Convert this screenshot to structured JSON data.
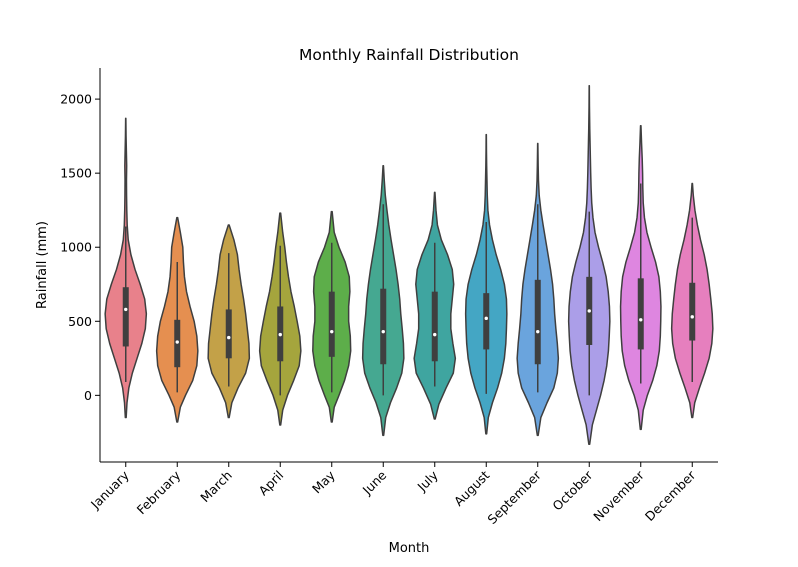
{
  "chart_data": {
    "type": "violin",
    "title": "Monthly Rainfall Distribution",
    "xlabel": "Month",
    "ylabel": "Rainfall (mm)",
    "ylim": [
      -450,
      2210
    ],
    "yticks": [
      0,
      500,
      1000,
      1500,
      2000
    ],
    "grid": false,
    "legend": "none",
    "categories": [
      "January",
      "February",
      "March",
      "April",
      "May",
      "June",
      "July",
      "August",
      "September",
      "October",
      "November",
      "December"
    ],
    "series": [
      {
        "month": "January",
        "color": "#e8818b",
        "min": 90,
        "max": 1140,
        "q1": 330,
        "median": 580,
        "q3": 730,
        "kde_min": -150,
        "kde_max": 1870,
        "density": [
          [
            -150,
            0.02
          ],
          [
            -50,
            0.06
          ],
          [
            50,
            0.15
          ],
          [
            150,
            0.32
          ],
          [
            250,
            0.55
          ],
          [
            350,
            0.78
          ],
          [
            450,
            0.95
          ],
          [
            550,
            1.0
          ],
          [
            650,
            0.92
          ],
          [
            750,
            0.7
          ],
          [
            850,
            0.45
          ],
          [
            950,
            0.25
          ],
          [
            1050,
            0.12
          ],
          [
            1150,
            0.07
          ],
          [
            1250,
            0.05
          ],
          [
            1350,
            0.04
          ],
          [
            1450,
            0.035
          ],
          [
            1550,
            0.045
          ],
          [
            1650,
            0.03
          ],
          [
            1750,
            0.015
          ],
          [
            1870,
            0.005
          ]
        ]
      },
      {
        "month": "February",
        "color": "#e58f50",
        "min": 20,
        "max": 900,
        "q1": 190,
        "median": 360,
        "q3": 510,
        "kde_min": -180,
        "kde_max": 1200,
        "density": [
          [
            -180,
            0.02
          ],
          [
            -80,
            0.15
          ],
          [
            0,
            0.4
          ],
          [
            100,
            0.75
          ],
          [
            200,
            0.95
          ],
          [
            300,
            1.0
          ],
          [
            400,
            0.95
          ],
          [
            500,
            0.82
          ],
          [
            600,
            0.62
          ],
          [
            700,
            0.45
          ],
          [
            800,
            0.35
          ],
          [
            900,
            0.3
          ],
          [
            1000,
            0.27
          ],
          [
            1100,
            0.15
          ],
          [
            1200,
            0.02
          ]
        ]
      },
      {
        "month": "March",
        "color": "#c3a148",
        "min": 60,
        "max": 960,
        "q1": 250,
        "median": 390,
        "q3": 580,
        "kde_min": -150,
        "kde_max": 1150,
        "density": [
          [
            -150,
            0.02
          ],
          [
            -50,
            0.15
          ],
          [
            50,
            0.45
          ],
          [
            150,
            0.82
          ],
          [
            250,
            1.0
          ],
          [
            350,
            0.98
          ],
          [
            450,
            0.9
          ],
          [
            550,
            0.82
          ],
          [
            650,
            0.72
          ],
          [
            750,
            0.6
          ],
          [
            850,
            0.5
          ],
          [
            950,
            0.42
          ],
          [
            1050,
            0.25
          ],
          [
            1150,
            0.02
          ]
        ]
      },
      {
        "month": "April",
        "color": "#a5a53d",
        "min": 0,
        "max": 1010,
        "q1": 230,
        "median": 410,
        "q3": 600,
        "kde_min": -200,
        "kde_max": 1230,
        "density": [
          [
            -200,
            0.02
          ],
          [
            -100,
            0.12
          ],
          [
            0,
            0.35
          ],
          [
            100,
            0.65
          ],
          [
            200,
            0.92
          ],
          [
            300,
            1.0
          ],
          [
            400,
            0.95
          ],
          [
            500,
            0.82
          ],
          [
            600,
            0.68
          ],
          [
            700,
            0.52
          ],
          [
            800,
            0.4
          ],
          [
            900,
            0.3
          ],
          [
            1000,
            0.22
          ],
          [
            1100,
            0.12
          ],
          [
            1230,
            0.02
          ]
        ]
      },
      {
        "month": "May",
        "color": "#5dae4a",
        "min": 20,
        "max": 1030,
        "q1": 260,
        "median": 430,
        "q3": 700,
        "kde_min": -180,
        "kde_max": 1240,
        "density": [
          [
            -180,
            0.02
          ],
          [
            -80,
            0.12
          ],
          [
            0,
            0.35
          ],
          [
            100,
            0.62
          ],
          [
            200,
            0.82
          ],
          [
            300,
            0.92
          ],
          [
            400,
            0.9
          ],
          [
            500,
            0.82
          ],
          [
            600,
            0.82
          ],
          [
            700,
            0.88
          ],
          [
            800,
            0.85
          ],
          [
            900,
            0.65
          ],
          [
            1000,
            0.35
          ],
          [
            1100,
            0.12
          ],
          [
            1240,
            0.02
          ]
        ]
      },
      {
        "month": "June",
        "color": "#45a891",
        "min": 0,
        "max": 1290,
        "q1": 210,
        "median": 430,
        "q3": 720,
        "kde_min": -270,
        "kde_max": 1550,
        "density": [
          [
            -270,
            0.02
          ],
          [
            -150,
            0.12
          ],
          [
            -50,
            0.35
          ],
          [
            50,
            0.65
          ],
          [
            150,
            0.9
          ],
          [
            250,
            1.0
          ],
          [
            350,
            0.98
          ],
          [
            450,
            0.92
          ],
          [
            550,
            0.85
          ],
          [
            650,
            0.8
          ],
          [
            750,
            0.72
          ],
          [
            850,
            0.62
          ],
          [
            950,
            0.5
          ],
          [
            1050,
            0.38
          ],
          [
            1150,
            0.27
          ],
          [
            1250,
            0.18
          ],
          [
            1350,
            0.1
          ],
          [
            1450,
            0.05
          ],
          [
            1550,
            0.01
          ]
        ]
      },
      {
        "month": "July",
        "color": "#3fa5a0",
        "min": 60,
        "max": 1030,
        "q1": 230,
        "median": 410,
        "q3": 700,
        "kde_min": -160,
        "kde_max": 1370,
        "density": [
          [
            -160,
            0.02
          ],
          [
            -60,
            0.2
          ],
          [
            50,
            0.55
          ],
          [
            150,
            0.9
          ],
          [
            250,
            1.0
          ],
          [
            350,
            0.88
          ],
          [
            450,
            0.78
          ],
          [
            550,
            0.78
          ],
          [
            650,
            0.85
          ],
          [
            750,
            0.92
          ],
          [
            850,
            0.85
          ],
          [
            950,
            0.62
          ],
          [
            1050,
            0.32
          ],
          [
            1150,
            0.13
          ],
          [
            1250,
            0.06
          ],
          [
            1370,
            0.01
          ]
        ]
      },
      {
        "month": "August",
        "color": "#44a6c4",
        "min": 10,
        "max": 1170,
        "q1": 310,
        "median": 520,
        "q3": 690,
        "kde_min": -260,
        "kde_max": 1760,
        "density": [
          [
            -260,
            0.02
          ],
          [
            -150,
            0.1
          ],
          [
            -50,
            0.3
          ],
          [
            50,
            0.55
          ],
          [
            150,
            0.75
          ],
          [
            250,
            0.88
          ],
          [
            350,
            0.95
          ],
          [
            450,
            0.98
          ],
          [
            550,
            1.0
          ],
          [
            650,
            0.98
          ],
          [
            750,
            0.88
          ],
          [
            850,
            0.7
          ],
          [
            950,
            0.48
          ],
          [
            1050,
            0.3
          ],
          [
            1150,
            0.16
          ],
          [
            1250,
            0.08
          ],
          [
            1350,
            0.05
          ],
          [
            1450,
            0.035
          ],
          [
            1550,
            0.02
          ],
          [
            1650,
            0.01
          ],
          [
            1760,
            0.005
          ]
        ]
      },
      {
        "month": "September",
        "color": "#6aa4dd",
        "min": 20,
        "max": 1290,
        "q1": 210,
        "median": 430,
        "q3": 780,
        "kde_min": -270,
        "kde_max": 1700,
        "density": [
          [
            -270,
            0.02
          ],
          [
            -150,
            0.15
          ],
          [
            -50,
            0.45
          ],
          [
            50,
            0.78
          ],
          [
            150,
            0.95
          ],
          [
            250,
            1.0
          ],
          [
            350,
            0.95
          ],
          [
            450,
            0.88
          ],
          [
            550,
            0.82
          ],
          [
            650,
            0.78
          ],
          [
            750,
            0.72
          ],
          [
            850,
            0.62
          ],
          [
            950,
            0.5
          ],
          [
            1050,
            0.38
          ],
          [
            1150,
            0.26
          ],
          [
            1250,
            0.15
          ],
          [
            1350,
            0.07
          ],
          [
            1450,
            0.035
          ],
          [
            1550,
            0.02
          ],
          [
            1700,
            0.005
          ]
        ]
      },
      {
        "month": "October",
        "color": "#ab9ee8",
        "min": 0,
        "max": 1240,
        "q1": 340,
        "median": 570,
        "q3": 800,
        "kde_min": -330,
        "kde_max": 2090,
        "density": [
          [
            -330,
            0.02
          ],
          [
            -200,
            0.15
          ],
          [
            -100,
            0.35
          ],
          [
            0,
            0.55
          ],
          [
            100,
            0.72
          ],
          [
            200,
            0.85
          ],
          [
            300,
            0.93
          ],
          [
            400,
            0.97
          ],
          [
            500,
            1.0
          ],
          [
            600,
            0.98
          ],
          [
            700,
            0.92
          ],
          [
            800,
            0.82
          ],
          [
            900,
            0.65
          ],
          [
            1000,
            0.45
          ],
          [
            1100,
            0.28
          ],
          [
            1200,
            0.18
          ],
          [
            1300,
            0.12
          ],
          [
            1400,
            0.09
          ],
          [
            1500,
            0.07
          ],
          [
            1600,
            0.055
          ],
          [
            1700,
            0.04
          ],
          [
            1800,
            0.025
          ],
          [
            1950,
            0.01
          ],
          [
            2090,
            0.004
          ]
        ]
      },
      {
        "month": "November",
        "color": "#de86e0",
        "min": 80,
        "max": 1430,
        "q1": 310,
        "median": 510,
        "q3": 790,
        "kde_min": -230,
        "kde_max": 1820,
        "density": [
          [
            -230,
            0.02
          ],
          [
            -100,
            0.12
          ],
          [
            0,
            0.32
          ],
          [
            100,
            0.58
          ],
          [
            200,
            0.78
          ],
          [
            300,
            0.9
          ],
          [
            400,
            0.95
          ],
          [
            500,
            0.97
          ],
          [
            600,
            0.98
          ],
          [
            700,
            0.95
          ],
          [
            800,
            0.88
          ],
          [
            900,
            0.72
          ],
          [
            1000,
            0.5
          ],
          [
            1100,
            0.3
          ],
          [
            1200,
            0.18
          ],
          [
            1300,
            0.12
          ],
          [
            1400,
            0.1
          ],
          [
            1500,
            0.09
          ],
          [
            1600,
            0.07
          ],
          [
            1700,
            0.04
          ],
          [
            1820,
            0.01
          ]
        ]
      },
      {
        "month": "December",
        "color": "#e67fbe",
        "min": 90,
        "max": 1200,
        "q1": 370,
        "median": 530,
        "q3": 760,
        "kde_min": -150,
        "kde_max": 1430,
        "density": [
          [
            -150,
            0.02
          ],
          [
            -50,
            0.12
          ],
          [
            50,
            0.35
          ],
          [
            150,
            0.6
          ],
          [
            250,
            0.82
          ],
          [
            350,
            0.95
          ],
          [
            450,
            1.0
          ],
          [
            550,
            0.97
          ],
          [
            650,
            0.9
          ],
          [
            750,
            0.82
          ],
          [
            850,
            0.72
          ],
          [
            950,
            0.58
          ],
          [
            1050,
            0.4
          ],
          [
            1150,
            0.25
          ],
          [
            1250,
            0.13
          ],
          [
            1350,
            0.05
          ],
          [
            1430,
            0.01
          ]
        ]
      }
    ]
  }
}
